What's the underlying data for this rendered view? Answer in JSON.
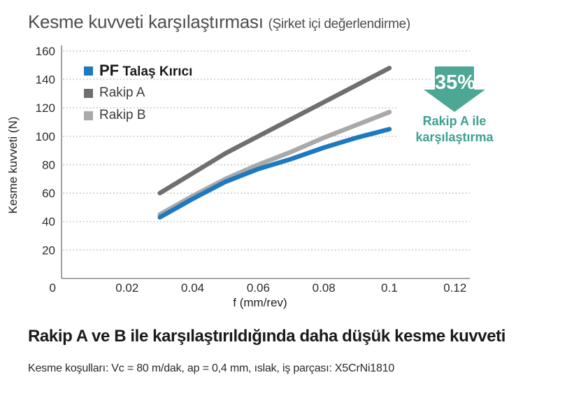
{
  "header": {
    "title": "Kesme kuvveti karşılaştırması",
    "subtitle": "(Şirket içi değerlendirme)"
  },
  "legend": {
    "pf_brand": "PF",
    "pf_product": "Talaş Kırıcı"
  },
  "chart_data": {
    "type": "line",
    "title": "Kesme kuvveti karşılaştırması (Şirket içi değerlendirme)",
    "xlabel": "f (mm/rev)",
    "ylabel": "Kesme kuvveti (N)",
    "xlim": [
      0,
      0.12
    ],
    "ylim": [
      0,
      160
    ],
    "x_ticks": [
      0,
      0.02,
      0.04,
      0.06,
      0.08,
      0.1,
      0.12
    ],
    "y_ticks": [
      20,
      40,
      60,
      80,
      100,
      120,
      140,
      160
    ],
    "grid": "dotted-horizontal",
    "legend_position": "top-left-inside",
    "x": [
      0.03,
      0.04,
      0.05,
      0.06,
      0.07,
      0.08,
      0.09,
      0.1
    ],
    "series": [
      {
        "name": "PF Talaş Kırıcı",
        "color": "#1d79c0",
        "values": [
          43,
          56,
          68,
          77,
          84,
          92,
          99,
          105
        ]
      },
      {
        "name": "Rakip A",
        "color": "#6f6f6f",
        "values": [
          60,
          74,
          88,
          100,
          112,
          124,
          136,
          148
        ]
      },
      {
        "name": "Rakip B",
        "color": "#a9a9a9",
        "values": [
          45,
          58,
          70,
          80,
          89,
          99,
          108,
          117
        ]
      }
    ],
    "colors": {
      "grid": "#c6c6c6",
      "axis": "#8a8a8a",
      "tick_text": "#2b2b2b"
    }
  },
  "annotation": {
    "value": "35%",
    "line1": "Rakip A ile",
    "line2": "karşılaştırma",
    "arrow_color": "#4ca795",
    "text_color": "#3ea090"
  },
  "footer": {
    "heading": "Rakip A ve B ile karşılaştırıldığında daha düşük kesme kuvveti",
    "conditions": "Kesme koşulları: Vc = 80 m/dak, ap = 0,4 mm, ıslak, iş parçası: X5CrNi1810"
  }
}
